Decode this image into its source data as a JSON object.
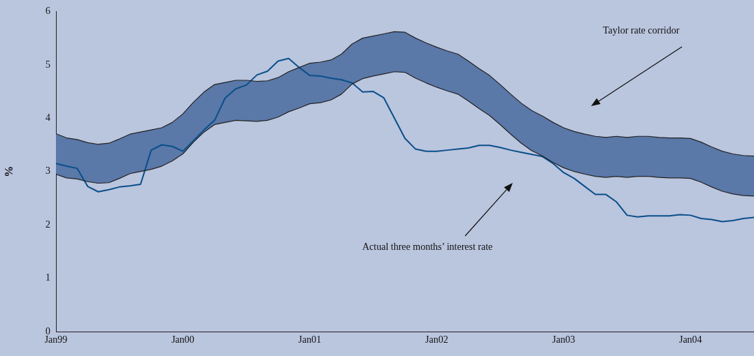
{
  "chart_data": {
    "type": "line",
    "x": [
      "1999-01",
      "1999-02",
      "1999-03",
      "1999-04",
      "1999-05",
      "1999-06",
      "1999-07",
      "1999-08",
      "1999-09",
      "1999-10",
      "1999-11",
      "1999-12",
      "2000-01",
      "2000-02",
      "2000-03",
      "2000-04",
      "2000-05",
      "2000-06",
      "2000-07",
      "2000-08",
      "2000-09",
      "2000-10",
      "2000-11",
      "2000-12",
      "2001-01",
      "2001-02",
      "2001-03",
      "2001-04",
      "2001-05",
      "2001-06",
      "2001-07",
      "2001-08",
      "2001-09",
      "2001-10",
      "2001-11",
      "2001-12",
      "2002-01",
      "2002-02",
      "2002-03",
      "2002-04",
      "2002-05",
      "2002-06",
      "2002-07",
      "2002-08",
      "2002-09",
      "2002-10",
      "2002-11",
      "2002-12",
      "2003-01",
      "2003-02",
      "2003-03",
      "2003-04",
      "2003-05",
      "2003-06",
      "2003-07",
      "2003-08",
      "2003-09",
      "2003-10",
      "2003-11",
      "2003-12",
      "2004-01",
      "2004-02",
      "2004-03",
      "2004-04",
      "2004-05",
      "2004-06",
      "2004-07"
    ],
    "series": [
      {
        "type": "area",
        "color": "#5a78a8",
        "values": [
          null,
          null,
          null,
          null,
          null,
          null,
          null,
          null,
          null,
          null,
          null,
          null,
          null,
          null,
          null,
          null,
          null,
          null,
          null,
          null,
          null,
          null,
          null,
          null,
          null,
          null,
          null,
          null,
          null,
          null,
          null,
          null,
          null,
          null,
          null,
          null,
          null,
          null,
          null,
          null,
          null,
          null,
          null,
          null,
          null,
          null,
          null,
          null,
          null,
          null,
          null,
          null,
          null,
          null,
          null,
          null,
          null,
          null,
          null,
          null,
          null,
          null,
          null,
          null,
          null,
          null,
          null
        ],
        "upper": [
          3.71,
          3.63,
          3.6,
          3.54,
          3.51,
          3.53,
          3.61,
          3.7,
          3.74,
          3.78,
          3.82,
          3.92,
          4.08,
          4.3,
          4.49,
          4.63,
          4.67,
          4.71,
          4.71,
          4.69,
          4.7,
          4.76,
          4.87,
          4.95,
          5.03,
          5.05,
          5.09,
          5.2,
          5.39,
          5.5,
          5.54,
          5.58,
          5.62,
          5.61,
          5.5,
          5.41,
          5.33,
          5.26,
          5.2,
          5.07,
          4.93,
          4.8,
          4.63,
          4.45,
          4.28,
          4.14,
          4.04,
          3.92,
          3.82,
          3.75,
          3.7,
          3.66,
          3.64,
          3.66,
          3.64,
          3.66,
          3.66,
          3.64,
          3.63,
          3.63,
          3.62,
          3.55,
          3.46,
          3.38,
          3.33,
          3.3,
          3.29
        ],
        "lower": [
          2.95,
          2.88,
          2.86,
          2.81,
          2.78,
          2.79,
          2.87,
          2.96,
          3.0,
          3.04,
          3.1,
          3.2,
          3.33,
          3.55,
          3.74,
          3.88,
          3.92,
          3.96,
          3.95,
          3.94,
          3.96,
          4.02,
          4.12,
          4.19,
          4.27,
          4.29,
          4.34,
          4.45,
          4.64,
          4.74,
          4.79,
          4.83,
          4.87,
          4.86,
          4.75,
          4.66,
          4.58,
          4.51,
          4.45,
          4.32,
          4.18,
          4.05,
          3.88,
          3.7,
          3.53,
          3.39,
          3.29,
          3.17,
          3.07,
          3.0,
          2.95,
          2.91,
          2.89,
          2.91,
          2.89,
          2.91,
          2.91,
          2.89,
          2.88,
          2.88,
          2.87,
          2.8,
          2.71,
          2.63,
          2.58,
          2.55,
          2.54
        ]
      },
      {
        "type": "line",
        "color": "#222222",
        "values": [
          3.71,
          3.63,
          3.6,
          3.54,
          3.51,
          3.53,
          3.61,
          3.7,
          3.74,
          3.78,
          3.82,
          3.92,
          4.08,
          4.3,
          4.49,
          4.63,
          4.67,
          4.71,
          4.71,
          4.69,
          4.7,
          4.76,
          4.87,
          4.95,
          5.03,
          5.05,
          5.09,
          5.2,
          5.39,
          5.5,
          5.54,
          5.58,
          5.62,
          5.61,
          5.5,
          5.41,
          5.33,
          5.26,
          5.2,
          5.07,
          4.93,
          4.8,
          4.63,
          4.45,
          4.28,
          4.14,
          4.04,
          3.92,
          3.82,
          3.75,
          3.7,
          3.66,
          3.64,
          3.66,
          3.64,
          3.66,
          3.66,
          3.64,
          3.63,
          3.63,
          3.62,
          3.55,
          3.46,
          3.38,
          3.33,
          3.3,
          3.29
        ]
      },
      {
        "type": "line",
        "color": "#222222",
        "values": [
          2.95,
          2.88,
          2.86,
          2.81,
          2.78,
          2.79,
          2.87,
          2.96,
          3.0,
          3.04,
          3.1,
          3.2,
          3.33,
          3.55,
          3.74,
          3.88,
          3.92,
          3.96,
          3.95,
          3.94,
          3.96,
          4.02,
          4.12,
          4.19,
          4.27,
          4.29,
          4.34,
          4.45,
          4.64,
          4.74,
          4.79,
          4.83,
          4.87,
          4.86,
          4.75,
          4.66,
          4.58,
          4.51,
          4.45,
          4.32,
          4.18,
          4.05,
          3.88,
          3.7,
          3.53,
          3.39,
          3.29,
          3.17,
          3.07,
          3.0,
          2.95,
          2.91,
          2.89,
          2.91,
          2.89,
          2.91,
          2.91,
          2.89,
          2.88,
          2.88,
          2.87,
          2.8,
          2.71,
          2.63,
          2.58,
          2.55,
          2.54
        ]
      },
      {
        "type": "line",
        "color": "#0a4f8a",
        "values": [
          3.15,
          3.1,
          3.06,
          2.72,
          2.62,
          2.66,
          2.71,
          2.73,
          2.76,
          3.4,
          3.5,
          3.47,
          3.38,
          3.58,
          3.78,
          3.96,
          4.38,
          4.55,
          4.62,
          4.81,
          4.88,
          5.07,
          5.12,
          4.95,
          4.8,
          4.79,
          4.75,
          4.72,
          4.66,
          4.49,
          4.5,
          4.38,
          4.0,
          3.62,
          3.42,
          3.38,
          3.38,
          3.4,
          3.42,
          3.44,
          3.49,
          3.49,
          3.45,
          3.4,
          3.36,
          3.32,
          3.28,
          3.15,
          2.98,
          2.87,
          2.72,
          2.57,
          2.57,
          2.43,
          2.18,
          2.15,
          2.17,
          2.17,
          2.17,
          2.19,
          2.18,
          2.12,
          2.1,
          2.06,
          2.08,
          2.12,
          2.14
        ]
      }
    ],
    "ylabel": "%",
    "xlim": [
      "1999-01",
      "2004-07"
    ],
    "xticks": [
      {
        "value": "1999-01",
        "label": "Jan99"
      },
      {
        "value": "2000-01",
        "label": "Jan00"
      },
      {
        "value": "2001-01",
        "label": "Jan01"
      },
      {
        "value": "2002-01",
        "label": "Jan02"
      },
      {
        "value": "2003-01",
        "label": "Jan03"
      },
      {
        "value": "2004-01",
        "label": "Jan04"
      }
    ],
    "ylim": [
      0,
      6
    ],
    "yticks": [
      0,
      1,
      2,
      3,
      4,
      5,
      6
    ],
    "annotations": [
      "Taylor rate corridor",
      "Actual three months’ interest rate"
    ],
    "grid": false,
    "legend": false,
    "marker": "none",
    "line_style": "solid"
  }
}
